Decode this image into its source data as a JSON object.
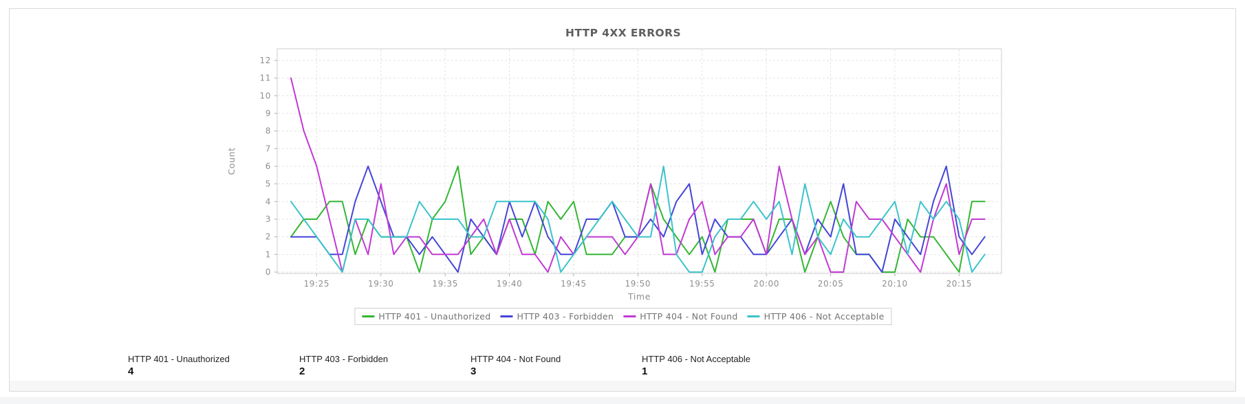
{
  "chart_data": {
    "type": "line",
    "title": "HTTP 4XX ERRORS",
    "xlabel": "Time",
    "ylabel": "Count",
    "ylim": [
      0,
      12
    ],
    "grid": true,
    "legend_position": "bottom",
    "x_start": "19:23",
    "x_interval_minutes": 1,
    "x_tick_labels": [
      "19:25",
      "19:30",
      "19:35",
      "19:40",
      "19:45",
      "19:50",
      "19:55",
      "20:00",
      "20:05",
      "20:10",
      "20:15"
    ],
    "series": [
      {
        "name": "HTTP 401 - Unauthorized",
        "color": "#33b632",
        "values": [
          2,
          3,
          3,
          4,
          4,
          1,
          3,
          2,
          2,
          2,
          0,
          3,
          4,
          6,
          1,
          2,
          1,
          3,
          3,
          1,
          4,
          3,
          4,
          1,
          1,
          1,
          2,
          2,
          5,
          3,
          2,
          1,
          2,
          0,
          3,
          3,
          3,
          1,
          3,
          3,
          0,
          2,
          4,
          2,
          1,
          1,
          0,
          0,
          3,
          2,
          2,
          1,
          0,
          4,
          4
        ]
      },
      {
        "name": "HTTP 403 - Forbidden",
        "color": "#4444d8",
        "values": [
          2,
          2,
          2,
          1,
          1,
          4,
          6,
          4,
          2,
          2,
          1,
          2,
          1,
          0,
          3,
          2,
          1,
          4,
          2,
          4,
          2,
          1,
          1,
          3,
          3,
          4,
          2,
          2,
          3,
          2,
          4,
          5,
          1,
          3,
          2,
          2,
          1,
          1,
          2,
          3,
          1,
          3,
          2,
          5,
          1,
          1,
          0,
          3,
          2,
          1,
          4,
          6,
          2,
          1,
          2
        ]
      },
      {
        "name": "HTTP 404 - Not Found",
        "color": "#c139d3",
        "values": [
          11,
          8,
          6,
          3,
          0,
          3,
          1,
          5,
          1,
          2,
          2,
          1,
          1,
          1,
          2,
          3,
          1,
          3,
          1,
          1,
          0,
          2,
          1,
          2,
          2,
          2,
          1,
          2,
          5,
          1,
          1,
          3,
          4,
          1,
          2,
          2,
          3,
          1,
          6,
          3,
          1,
          2,
          0,
          0,
          4,
          3,
          3,
          2,
          1,
          0,
          3,
          5,
          1,
          3,
          3
        ]
      },
      {
        "name": "HTTP 406 - Not Acceptable",
        "color": "#3ac3cb",
        "values": [
          4,
          3,
          2,
          1,
          0,
          3,
          3,
          2,
          2,
          2,
          4,
          3,
          3,
          3,
          2,
          2,
          4,
          4,
          4,
          4,
          3,
          0,
          1,
          2,
          3,
          4,
          3,
          2,
          2,
          6,
          1,
          0,
          0,
          2,
          3,
          3,
          4,
          3,
          4,
          1,
          5,
          2,
          1,
          3,
          2,
          2,
          3,
          4,
          1,
          4,
          3,
          4,
          3,
          0,
          1
        ]
      }
    ]
  },
  "stats": {
    "items": [
      {
        "label": "HTTP 401 - Unauthorized",
        "value": "4"
      },
      {
        "label": "HTTP 403 - Forbidden",
        "value": "2"
      },
      {
        "label": "HTTP 404 - Not Found",
        "value": "3"
      },
      {
        "label": "HTTP 406 - Not Acceptable",
        "value": "1"
      }
    ]
  },
  "colors": {
    "grid": "#e2e2e2",
    "plot_border": "#cccccc",
    "tick_mark": "#aaaaaa",
    "tick_text": "#8f8f8f",
    "chart_title": "#5f5f5f",
    "legend_text": "#737373",
    "card_border": "#d9d9d9",
    "footer_strip": "#f7f7f7"
  }
}
